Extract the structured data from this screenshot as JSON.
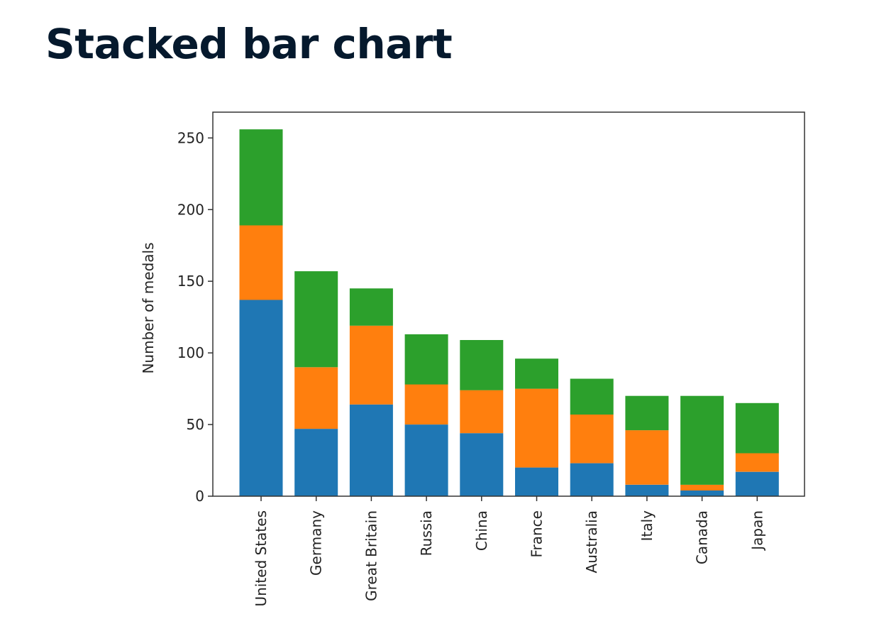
{
  "page": {
    "title": "Stacked bar chart"
  },
  "chart_data": {
    "type": "bar",
    "stacked": true,
    "title": "",
    "xlabel": "",
    "ylabel": "Number of medals",
    "ylim": [
      0,
      268
    ],
    "yticks": [
      0,
      50,
      100,
      150,
      200,
      250
    ],
    "grid": false,
    "categories": [
      "United States",
      "Germany",
      "Great Britain",
      "Russia",
      "China",
      "France",
      "Australia",
      "Italy",
      "Canada",
      "Japan"
    ],
    "series": [
      {
        "color": "#1f77b4",
        "values": [
          137,
          47,
          64,
          50,
          44,
          20,
          23,
          8,
          4,
          17
        ]
      },
      {
        "color": "#ff7f0e",
        "values": [
          52,
          43,
          55,
          28,
          30,
          55,
          34,
          38,
          4,
          13
        ]
      },
      {
        "color": "#2ca02c",
        "values": [
          67,
          67,
          26,
          35,
          35,
          21,
          25,
          24,
          62,
          35
        ]
      }
    ]
  }
}
